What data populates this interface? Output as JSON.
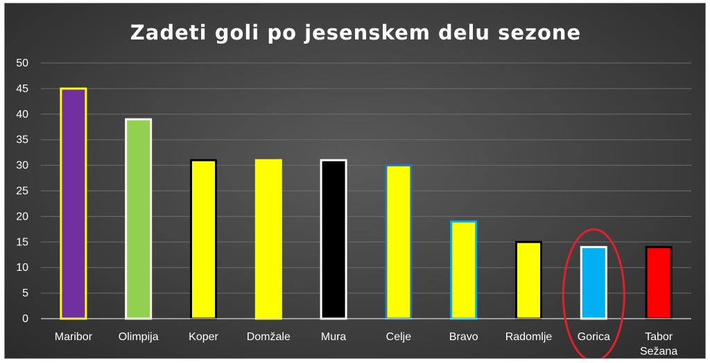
{
  "chart_data": {
    "type": "bar",
    "title": "Zadeti goli po jesenskem delu sezone",
    "xlabel": "",
    "ylabel": "",
    "ylim": [
      0,
      50
    ],
    "yticks": [
      0,
      5,
      10,
      15,
      20,
      25,
      30,
      35,
      40,
      45,
      50
    ],
    "grid": true,
    "categories": [
      "Maribor",
      "Olimpija",
      "Koper",
      "Domžale",
      "Mura",
      "Celje",
      "Bravo",
      "Radomlje",
      "Gorica",
      "Tabor Sežana"
    ],
    "values": [
      45,
      39,
      31,
      31,
      31,
      30,
      19,
      15,
      14,
      14
    ],
    "bar_fill_colors": [
      "#7030a0",
      "#92d050",
      "#ffff00",
      "#ffff00",
      "#000000",
      "#ffff00",
      "#ffff00",
      "#ffff00",
      "#00b0f0",
      "#ff0000"
    ],
    "bar_border_colors": [
      "#ffff00",
      "#ffffff",
      "#000000",
      "#ffff00",
      "#ffffff",
      "#2e75b6",
      "#00b0f0",
      "#000000",
      "#ffffff",
      "#000000"
    ],
    "highlight": {
      "category": "Gorica",
      "shape": "ellipse",
      "color": "#e0202a"
    }
  }
}
